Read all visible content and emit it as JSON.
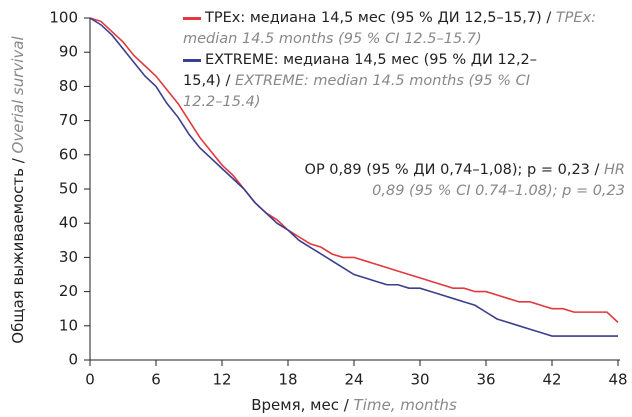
{
  "chart_data": {
    "type": "line",
    "y_label": "Общая выживаемость /",
    "y_label_translation": "Overial survival",
    "x_label": "Время, мес /",
    "x_label_translation": "Time, months",
    "annotation": "ОР 0,89 (95 % ДИ 0,74–1,08); p = 0,23 /",
    "annotation_translation": "HR 0,89 (95 % CI 0.74–1.08); p = 0,23",
    "x": [
      0,
      1,
      2,
      3,
      4,
      5,
      6,
      7,
      8,
      9,
      10,
      11,
      12,
      13,
      14,
      15,
      16,
      17,
      18,
      19,
      20,
      21,
      22,
      23,
      24,
      25,
      26,
      27,
      28,
      29,
      30,
      31,
      32,
      33,
      34,
      35,
      36,
      37,
      38,
      39,
      40,
      41,
      42,
      43,
      44,
      45,
      46,
      47,
      48
    ],
    "series": [
      {
        "name": "TPEx: медиана 14,5 мес (95 % ДИ 12,5–15,7) /",
        "translation": "TPEx: median 14.5 months (95 % CI 12.5–15.7)",
        "color": "#e0393e",
        "values": [
          100,
          99,
          96,
          93,
          89,
          86,
          83,
          79,
          75,
          70,
          65,
          61,
          57,
          54,
          50,
          46,
          43,
          41,
          38,
          36,
          34,
          33,
          31,
          30,
          30,
          29,
          28,
          27,
          26,
          25,
          24,
          23,
          22,
          21,
          21,
          20,
          20,
          19,
          18,
          17,
          17,
          16,
          15,
          15,
          14,
          14,
          14,
          14,
          11
        ]
      },
      {
        "name": "EXTREME: медиана 14,5 мес (95 % ДИ 12,2–15,4) /",
        "translation": "EXTREME: median 14.5 months (95 % CI 12.2–15.4)",
        "color": "#3b3f8c",
        "values": [
          100,
          98,
          95,
          91,
          87,
          83,
          80,
          75,
          71,
          66,
          62,
          59,
          56,
          53,
          50,
          46,
          43,
          40,
          38,
          35,
          33,
          31,
          29,
          27,
          25,
          24,
          23,
          22,
          22,
          21,
          21,
          20,
          19,
          18,
          17,
          16,
          14,
          12,
          11,
          10,
          9,
          8,
          7,
          7,
          7,
          7,
          7,
          7,
          7
        ]
      }
    ],
    "xlim": [
      0,
      48
    ],
    "xticks": [
      0,
      6,
      12,
      18,
      24,
      30,
      36,
      42,
      48
    ],
    "ylim": [
      0,
      100
    ],
    "yticks": [
      0,
      10,
      20,
      30,
      40,
      50,
      60,
      70,
      80,
      90,
      100
    ]
  }
}
